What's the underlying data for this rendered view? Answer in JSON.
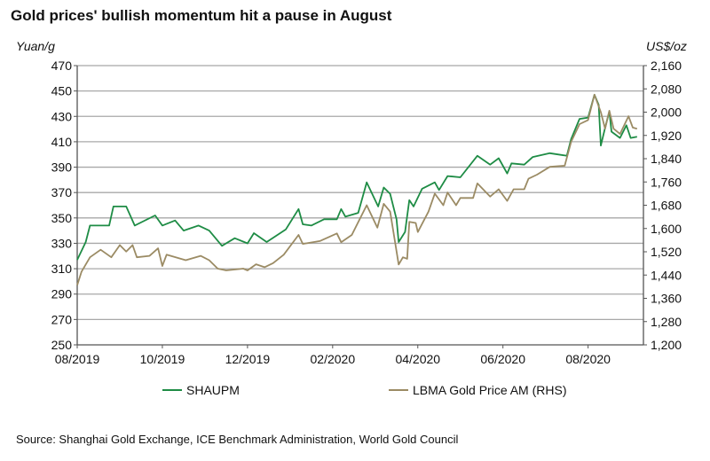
{
  "chart_data": {
    "type": "line",
    "title": "Gold prices' bullish momentum hit a pause in August",
    "ylabel": "Yuan/g",
    "y2label": "US$/oz",
    "xlabel": "",
    "x_unit": "months since 08/2019",
    "xlim": [
      0,
      13.3
    ],
    "ylim": [
      250,
      470
    ],
    "y2lim": [
      1200,
      2160
    ],
    "yticks": [
      "470",
      "450",
      "430",
      "410",
      "390",
      "370",
      "350",
      "330",
      "310",
      "290",
      "270",
      "250"
    ],
    "y2ticks": [
      "2,160",
      "2,080",
      "2,000",
      "1,920",
      "1,840",
      "1,760",
      "1,680",
      "1,600",
      "1,520",
      "1,440",
      "1,360",
      "1,280",
      "1,200"
    ],
    "xticks": [
      {
        "x": 0,
        "label": "08/2019"
      },
      {
        "x": 2,
        "label": "10/2019"
      },
      {
        "x": 4,
        "label": "12/2019"
      },
      {
        "x": 6,
        "label": "02/2020"
      },
      {
        "x": 8,
        "label": "04/2020"
      },
      {
        "x": 10,
        "label": "06/2020"
      },
      {
        "x": 12,
        "label": "08/2020"
      }
    ],
    "grid": true,
    "legend_position": "bottom",
    "series": [
      {
        "name": "SHAUPM",
        "axis": "left",
        "color": "#1e8c45",
        "x": [
          0,
          0.2,
          0.3,
          0.75,
          0.85,
          1.15,
          1.35,
          1.83,
          2.0,
          2.3,
          2.5,
          2.85,
          3.1,
          3.3,
          3.4,
          3.7,
          4.0,
          4.15,
          4.45,
          4.9,
          5.2,
          5.3,
          5.5,
          5.8,
          6.1,
          6.2,
          6.3,
          6.6,
          6.8,
          7.07,
          7.2,
          7.35,
          7.5,
          7.55,
          7.7,
          7.8,
          7.9,
          8.1,
          8.4,
          8.5,
          8.7,
          9.0,
          9.4,
          9.7,
          9.9,
          10.1,
          10.2,
          10.5,
          10.7,
          11.1,
          11.5,
          11.6,
          11.8,
          12.0,
          12.15,
          12.25,
          12.3,
          12.4,
          12.5,
          12.55,
          12.75,
          12.9,
          13.0,
          13.15
        ],
        "y": [
          317,
          331,
          344,
          344,
          359,
          359,
          344,
          352,
          344,
          348,
          340,
          344,
          340,
          332,
          328,
          334,
          330,
          338,
          331,
          341,
          357,
          345,
          344,
          349,
          349,
          357,
          351,
          354,
          378,
          359,
          374,
          369,
          349,
          331,
          339,
          364,
          359,
          373,
          378,
          372,
          383,
          382,
          399,
          392,
          397,
          385,
          393,
          392,
          398,
          401,
          399,
          412,
          428,
          429,
          447,
          439,
          407,
          421,
          434,
          418,
          413,
          423,
          413,
          414
        ]
      },
      {
        "name": "LBMA Gold Price AM (RHS)",
        "axis": "right",
        "color": "#9b8b64",
        "x": [
          0,
          0.1,
          0.3,
          0.55,
          0.8,
          1.0,
          1.15,
          1.3,
          1.4,
          1.7,
          1.9,
          2.0,
          2.1,
          2.55,
          2.9,
          3.1,
          3.3,
          3.5,
          3.9,
          4.0,
          4.2,
          4.4,
          4.6,
          4.85,
          5.2,
          5.3,
          5.7,
          6.1,
          6.2,
          6.45,
          6.8,
          7.05,
          7.2,
          7.35,
          7.55,
          7.65,
          7.75,
          7.8,
          7.95,
          8.0,
          8.25,
          8.4,
          8.6,
          8.7,
          8.9,
          9.0,
          9.3,
          9.4,
          9.7,
          9.9,
          10.1,
          10.25,
          10.5,
          10.6,
          10.8,
          11.1,
          11.45,
          11.6,
          11.8,
          12.0,
          12.15,
          12.3,
          12.4,
          12.5,
          12.6,
          12.75,
          12.95,
          13.05,
          13.15
        ],
        "y": [
          1405,
          1451,
          1501,
          1527,
          1501,
          1543,
          1521,
          1543,
          1501,
          1506,
          1532,
          1471,
          1510,
          1491,
          1506,
          1491,
          1462,
          1456,
          1462,
          1456,
          1477,
          1467,
          1481,
          1510,
          1578,
          1547,
          1557,
          1583,
          1553,
          1578,
          1680,
          1603,
          1685,
          1658,
          1476,
          1501,
          1496,
          1623,
          1619,
          1588,
          1658,
          1720,
          1680,
          1724,
          1680,
          1705,
          1705,
          1755,
          1710,
          1735,
          1695,
          1735,
          1735,
          1771,
          1785,
          1812,
          1816,
          1898,
          1959,
          1973,
          2060,
          2000,
          1943,
          2005,
          1943,
          1925,
          1986,
          1947,
          1943
        ]
      }
    ],
    "source": "Source: Shanghai Gold Exchange, ICE Benchmark Administration, World Gold Council"
  }
}
